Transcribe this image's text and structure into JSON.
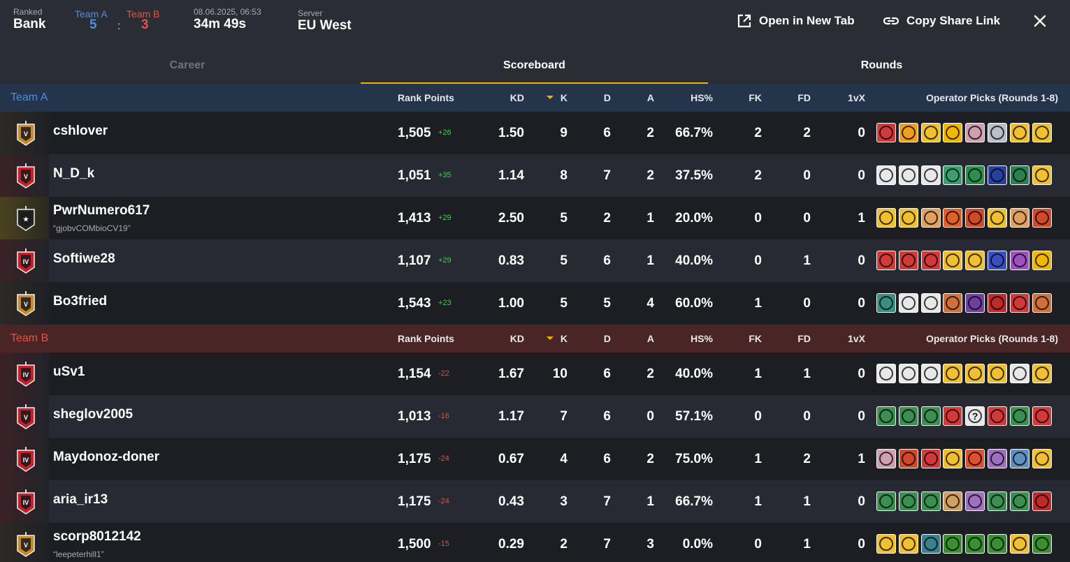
{
  "header": {
    "mode_label": "Ranked",
    "map": "Bank",
    "teamA_label": "Team A",
    "teamB_label": "Team B",
    "scoreA": "5",
    "scoreB": "3",
    "score_sep": ":",
    "datetime": "08.06.2025, 06:53",
    "duration": "34m 49s",
    "server_label": "Server",
    "server": "EU West",
    "open_tab_label": "Open in New Tab",
    "copy_link_label": "Copy Share Link"
  },
  "tabs": {
    "career": "Career",
    "scoreboard": "Scoreboard",
    "rounds": "Rounds"
  },
  "columns": {
    "rank_points": "Rank Points",
    "kd": "KD",
    "k": "K",
    "d": "D",
    "a": "A",
    "hs": "HS%",
    "fk": "FK",
    "fd": "FD",
    "onevx": "1vX",
    "ops": "Operator Picks (Rounds 1-8)"
  },
  "colors": {
    "teamA": "#4a8fe0",
    "teamB": "#e05545",
    "accent": "#f0b400",
    "gold_rank": "#c98a2a",
    "red_rank": "#c8202a"
  },
  "teams": [
    {
      "name": "Team A",
      "players": [
        {
          "name": "cshlover",
          "nick": "",
          "rank": "gold-v",
          "rank_roman": "V",
          "rp": "1,505",
          "delta": "+26",
          "kd": "1.50",
          "k": "9",
          "d": "6",
          "a": "2",
          "hs": "66.7%",
          "fk": "2",
          "fd": "2",
          "onevx": "0",
          "ops": [
            {
              "c": "#d23a3a",
              "g": ""
            },
            {
              "c": "#f0a020",
              "g": ""
            },
            {
              "c": "#f0c030",
              "g": ""
            },
            {
              "c": "#f0b800",
              "g": ""
            },
            {
              "c": "#d0a0b0",
              "g": ""
            },
            {
              "c": "#b8c0c8",
              "g": ""
            },
            {
              "c": "#f0c030",
              "g": ""
            },
            {
              "c": "#f0c030",
              "g": ""
            }
          ]
        },
        {
          "name": "N_D_k",
          "nick": "",
          "rank": "red-v",
          "rank_roman": "V",
          "rp": "1,051",
          "delta": "+35",
          "kd": "1.14",
          "k": "8",
          "d": "7",
          "a": "2",
          "hs": "37.5%",
          "fk": "2",
          "fd": "0",
          "onevx": "0",
          "ops": [
            {
              "c": "#e8e8e8",
              "g": ""
            },
            {
              "c": "#e8e8e8",
              "g": ""
            },
            {
              "c": "#e8e8e8",
              "g": ""
            },
            {
              "c": "#3aa070",
              "g": ""
            },
            {
              "c": "#2a9050",
              "g": ""
            },
            {
              "c": "#2a40a0",
              "g": ""
            },
            {
              "c": "#2a8050",
              "g": ""
            },
            {
              "c": "#f0c030",
              "g": ""
            }
          ]
        },
        {
          "name": "PwrNumero617",
          "nick": "“gjobvCOMbioCV19”",
          "rank": "dark-star",
          "rank_roman": "★",
          "rp": "1,413",
          "delta": "+29",
          "kd": "2.50",
          "k": "5",
          "d": "2",
          "a": "1",
          "hs": "20.0%",
          "fk": "0",
          "fd": "0",
          "onevx": "1",
          "ops": [
            {
              "c": "#f0c030",
              "g": ""
            },
            {
              "c": "#f0c030",
              "g": ""
            },
            {
              "c": "#e0a060",
              "g": ""
            },
            {
              "c": "#e0602a",
              "g": ""
            },
            {
              "c": "#d04a2a",
              "g": ""
            },
            {
              "c": "#f0c030",
              "g": ""
            },
            {
              "c": "#e0a060",
              "g": ""
            },
            {
              "c": "#d04a2a",
              "g": ""
            }
          ]
        },
        {
          "name": "Softiwe28",
          "nick": "",
          "rank": "red-iv",
          "rank_roman": "IV",
          "rp": "1,107",
          "delta": "+29",
          "kd": "0.83",
          "k": "5",
          "d": "6",
          "a": "1",
          "hs": "40.0%",
          "fk": "0",
          "fd": "1",
          "onevx": "0",
          "ops": [
            {
              "c": "#d23a3a",
              "g": ""
            },
            {
              "c": "#d23a3a",
              "g": ""
            },
            {
              "c": "#d23a3a",
              "g": ""
            },
            {
              "c": "#f0c030",
              "g": ""
            },
            {
              "c": "#f0c030",
              "g": ""
            },
            {
              "c": "#3a50c0",
              "g": ""
            },
            {
              "c": "#a050c0",
              "g": ""
            },
            {
              "c": "#f0b800",
              "g": ""
            }
          ]
        },
        {
          "name": "Bo3fried",
          "nick": "",
          "rank": "gold-v",
          "rank_roman": "V",
          "rp": "1,543",
          "delta": "+23",
          "kd": "1.00",
          "k": "5",
          "d": "5",
          "a": "4",
          "hs": "60.0%",
          "fk": "1",
          "fd": "0",
          "onevx": "0",
          "ops": [
            {
              "c": "#3a9080",
              "g": ""
            },
            {
              "c": "#e8e8e8",
              "g": ""
            },
            {
              "c": "#e8e8e8",
              "g": ""
            },
            {
              "c": "#d0703a",
              "g": ""
            },
            {
              "c": "#7040a0",
              "g": ""
            },
            {
              "c": "#c02a2a",
              "g": ""
            },
            {
              "c": "#d23a3a",
              "g": ""
            },
            {
              "c": "#d0703a",
              "g": ""
            }
          ]
        }
      ]
    },
    {
      "name": "Team B",
      "players": [
        {
          "name": "uSv1",
          "nick": "",
          "rank": "red-iv",
          "rank_roman": "IV",
          "rp": "1,154",
          "delta": "-22",
          "kd": "1.67",
          "k": "10",
          "d": "6",
          "a": "2",
          "hs": "40.0%",
          "fk": "1",
          "fd": "1",
          "onevx": "0",
          "ops": [
            {
              "c": "#e8e8e8",
              "g": ""
            },
            {
              "c": "#e8e8e8",
              "g": ""
            },
            {
              "c": "#e8e8e8",
              "g": ""
            },
            {
              "c": "#f0c030",
              "g": ""
            },
            {
              "c": "#f0c030",
              "g": ""
            },
            {
              "c": "#f0c030",
              "g": ""
            },
            {
              "c": "#e8e8e8",
              "g": ""
            },
            {
              "c": "#f0c030",
              "g": ""
            }
          ]
        },
        {
          "name": "sheglov2005",
          "nick": "",
          "rank": "red-v",
          "rank_roman": "V",
          "rp": "1,013",
          "delta": "-16",
          "kd": "1.17",
          "k": "7",
          "d": "6",
          "a": "0",
          "hs": "57.1%",
          "fk": "0",
          "fd": "0",
          "onevx": "0",
          "ops": [
            {
              "c": "#3a9050",
              "g": ""
            },
            {
              "c": "#3a9050",
              "g": ""
            },
            {
              "c": "#3a9050",
              "g": ""
            },
            {
              "c": "#d23a3a",
              "g": ""
            },
            {
              "c": "#e8e8e8",
              "g": "?"
            },
            {
              "c": "#d23a3a",
              "g": ""
            },
            {
              "c": "#3a9050",
              "g": ""
            },
            {
              "c": "#d23a3a",
              "g": ""
            }
          ]
        },
        {
          "name": "Maydonoz-doner",
          "nick": "",
          "rank": "red-iv",
          "rank_roman": "IV",
          "rp": "1,175",
          "delta": "-24",
          "kd": "0.67",
          "k": "4",
          "d": "6",
          "a": "2",
          "hs": "75.0%",
          "fk": "1",
          "fd": "2",
          "onevx": "1",
          "ops": [
            {
              "c": "#d0a0b0",
              "g": ""
            },
            {
              "c": "#d04a2a",
              "g": ""
            },
            {
              "c": "#d23a3a",
              "g": ""
            },
            {
              "c": "#f0c030",
              "g": ""
            },
            {
              "c": "#e05030",
              "g": ""
            },
            {
              "c": "#a070c0",
              "g": ""
            },
            {
              "c": "#6090c0",
              "g": ""
            },
            {
              "c": "#f0c030",
              "g": ""
            }
          ]
        },
        {
          "name": "aria_ir13",
          "nick": "",
          "rank": "red-iv",
          "rank_roman": "IV",
          "rp": "1,175",
          "delta": "-24",
          "kd": "0.43",
          "k": "3",
          "d": "7",
          "a": "1",
          "hs": "66.7%",
          "fk": "1",
          "fd": "1",
          "onevx": "0",
          "ops": [
            {
              "c": "#3a9050",
              "g": ""
            },
            {
              "c": "#3a9050",
              "g": ""
            },
            {
              "c": "#3a9050",
              "g": ""
            },
            {
              "c": "#d0a060",
              "g": ""
            },
            {
              "c": "#a070c0",
              "g": ""
            },
            {
              "c": "#3a9050",
              "g": ""
            },
            {
              "c": "#3a9050",
              "g": ""
            },
            {
              "c": "#c02a2a",
              "g": ""
            }
          ]
        },
        {
          "name": "scorp8012142",
          "nick": "“leepeterhill1”",
          "rank": "gold-v",
          "rank_roman": "V",
          "rp": "1,500",
          "delta": "-15",
          "kd": "0.29",
          "k": "2",
          "d": "7",
          "a": "3",
          "hs": "0.0%",
          "fk": "0",
          "fd": "1",
          "onevx": "0",
          "ops": [
            {
              "c": "#f0c030",
              "g": ""
            },
            {
              "c": "#f0c030",
              "g": ""
            },
            {
              "c": "#3a8090",
              "g": ""
            },
            {
              "c": "#3a9030",
              "g": ""
            },
            {
              "c": "#3a9030",
              "g": ""
            },
            {
              "c": "#3a9030",
              "g": ""
            },
            {
              "c": "#f0c030",
              "g": ""
            },
            {
              "c": "#3a9030",
              "g": ""
            }
          ]
        }
      ]
    }
  ]
}
